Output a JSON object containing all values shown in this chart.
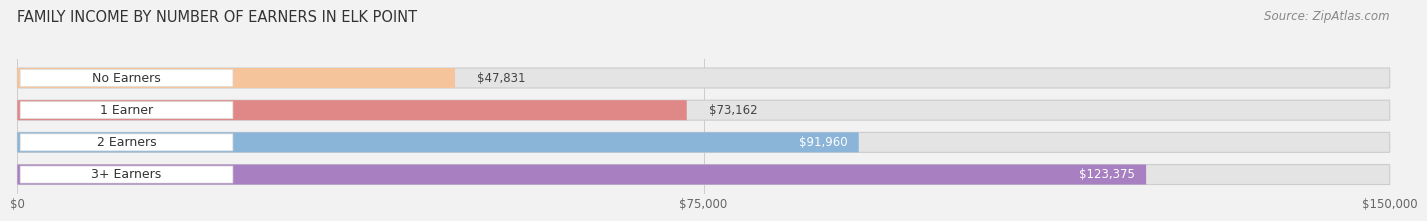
{
  "title": "FAMILY INCOME BY NUMBER OF EARNERS IN ELK POINT",
  "source": "Source: ZipAtlas.com",
  "categories": [
    "No Earners",
    "1 Earner",
    "2 Earners",
    "3+ Earners"
  ],
  "values": [
    47831,
    73162,
    91960,
    123375
  ],
  "bar_colors": [
    "#f5c49a",
    "#e08888",
    "#8ab4d8",
    "#a87fc0"
  ],
  "labels": [
    "$47,831",
    "$73,162",
    "$91,960",
    "$123,375"
  ],
  "label_colors": [
    "#444444",
    "#444444",
    "#ffffff",
    "#ffffff"
  ],
  "xlim": [
    0,
    150000
  ],
  "xticks": [
    0,
    75000,
    150000
  ],
  "xtick_labels": [
    "$0",
    "$75,000",
    "$150,000"
  ],
  "background_color": "#f2f2f2",
  "bar_bg_color": "#e4e4e4",
  "white_pill_color": "#ffffff",
  "title_fontsize": 10.5,
  "source_fontsize": 8.5,
  "value_fontsize": 8.5,
  "cat_fontsize": 9,
  "tick_fontsize": 8.5,
  "bar_height": 0.62
}
